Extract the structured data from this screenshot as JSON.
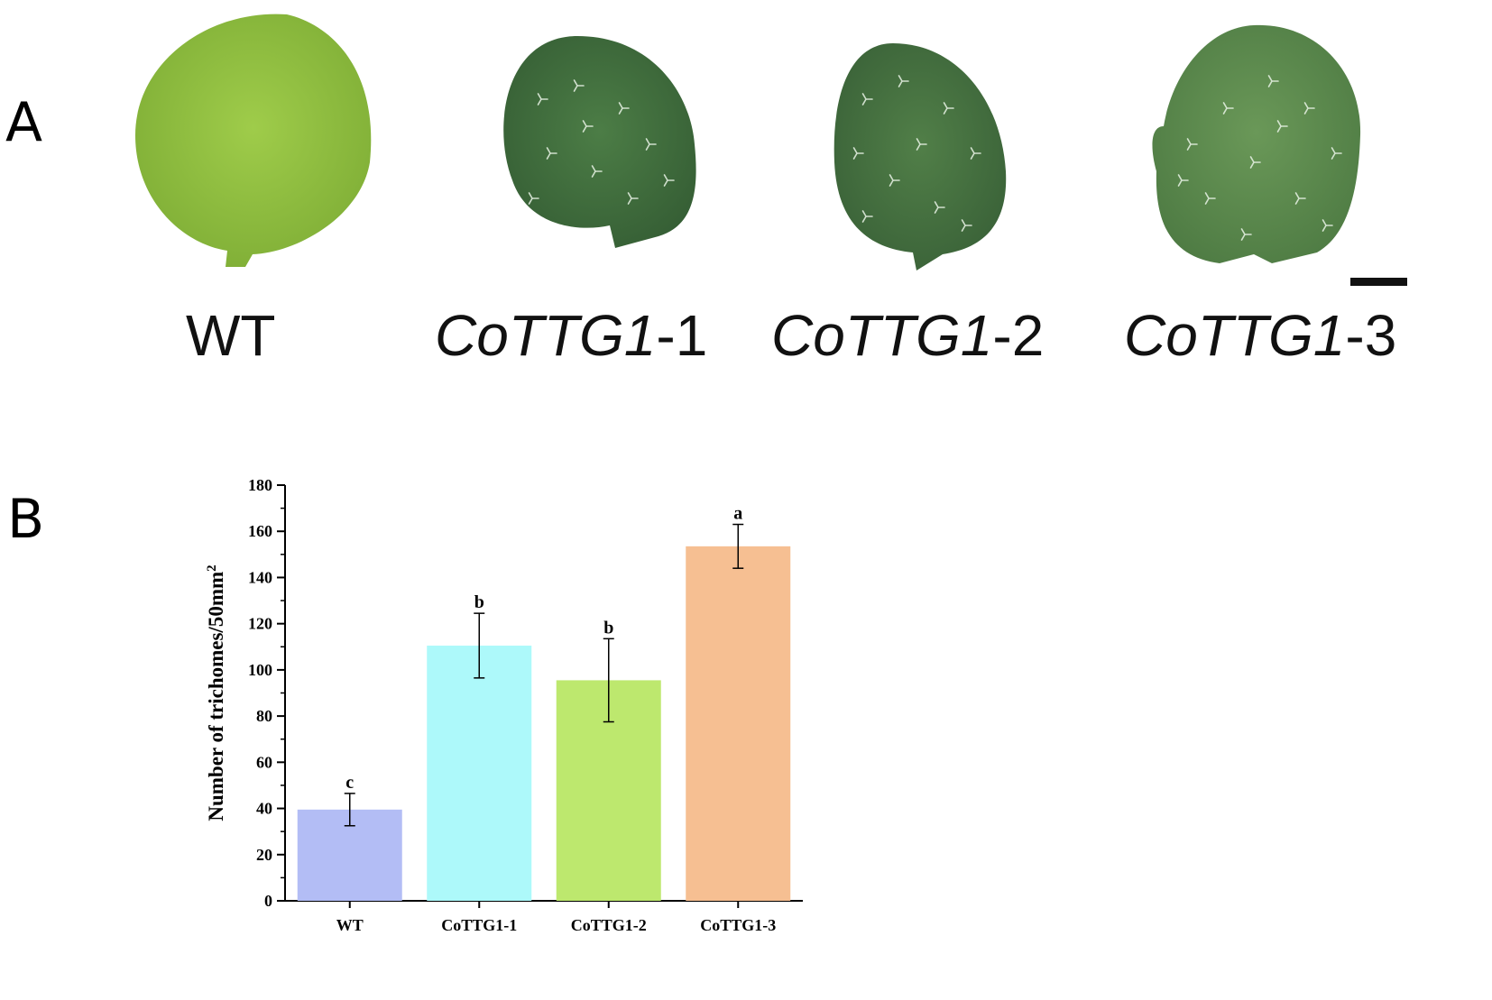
{
  "panel_a": {
    "label": "A",
    "leaves": [
      {
        "gene": "",
        "line": "WT",
        "color": "#8fbf3c"
      },
      {
        "gene": "CoTTG1",
        "line": "-1",
        "color": "#3f6e3c"
      },
      {
        "gene": "CoTTG1",
        "line": "-2",
        "color": "#44703f"
      },
      {
        "gene": "CoTTG1",
        "line": "-3",
        "color": "#5c8a4c"
      }
    ]
  },
  "panel_b": {
    "label": "B"
  },
  "chart_data": {
    "type": "bar",
    "categories": [
      "WT",
      "CoTTG1-1",
      "CoTTG1-2",
      "CoTTG1-3"
    ],
    "values": [
      39.5,
      110.5,
      95.5,
      153.5
    ],
    "errors": [
      7,
      14,
      18,
      9.5
    ],
    "significance_letters": [
      "c",
      "b",
      "b",
      "a"
    ],
    "colors": [
      "#b3bdf5",
      "#adf9fa",
      "#bde86e",
      "#f6bf92"
    ],
    "ylabel": "Number of trichomes/50mm",
    "ylabel_superscript": "2",
    "xlabel": "",
    "ylim": [
      0,
      180
    ],
    "yticks": [
      0,
      20,
      40,
      60,
      80,
      100,
      120,
      140,
      160,
      180
    ],
    "grid": false,
    "legend": "none"
  }
}
